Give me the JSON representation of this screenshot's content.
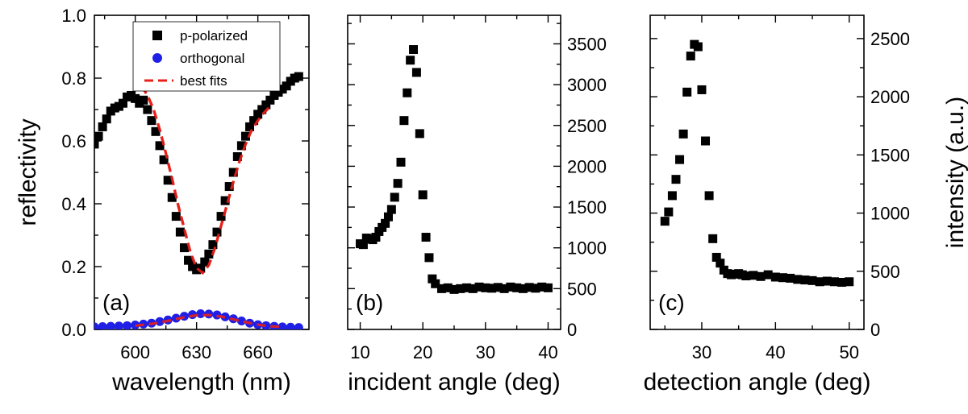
{
  "chart_data": [
    {
      "type": "scatter",
      "panel_label": "(a)",
      "xlabel": "wavelength (nm)",
      "ylabel": "reflectivity",
      "xlim": [
        580,
        685
      ],
      "ylim": [
        0,
        1.0
      ],
      "xticks": [
        600,
        630,
        660
      ],
      "yticks": [
        0.0,
        0.2,
        0.4,
        0.6,
        0.8,
        1.0
      ],
      "ytick_labels": [
        "0.0",
        "0.2",
        "0.4",
        "0.6",
        "0.8",
        "1.0"
      ],
      "legend": {
        "position": "top-center",
        "entries": [
          {
            "label": "p-polarized",
            "marker": "square",
            "color": "#000000"
          },
          {
            "label": "orthogonal",
            "marker": "circle",
            "color": "#1f1fe6"
          },
          {
            "label": "best fits",
            "marker": "dashed-line",
            "color": "#e8201a"
          }
        ]
      },
      "series": [
        {
          "name": "p-polarized",
          "marker": "square",
          "color": "#000000",
          "x": [
            580,
            582,
            584,
            586,
            588,
            590,
            592,
            594,
            596,
            598,
            600,
            602,
            604,
            606,
            608,
            610,
            612,
            614,
            616,
            618,
            620,
            622,
            624,
            626,
            628,
            630,
            632,
            634,
            636,
            638,
            640,
            642,
            644,
            646,
            648,
            650,
            652,
            654,
            656,
            658,
            660,
            662,
            664,
            666,
            668,
            670,
            672,
            674,
            676,
            678,
            680
          ],
          "y": [
            0.59,
            0.615,
            0.645,
            0.67,
            0.695,
            0.705,
            0.71,
            0.72,
            0.74,
            0.745,
            0.735,
            0.72,
            0.73,
            0.7,
            0.665,
            0.63,
            0.585,
            0.54,
            0.475,
            0.42,
            0.36,
            0.31,
            0.26,
            0.22,
            0.2,
            0.19,
            0.195,
            0.215,
            0.24,
            0.27,
            0.31,
            0.36,
            0.41,
            0.455,
            0.5,
            0.55,
            0.585,
            0.615,
            0.645,
            0.665,
            0.685,
            0.7,
            0.715,
            0.73,
            0.745,
            0.755,
            0.765,
            0.775,
            0.79,
            0.8,
            0.805
          ]
        },
        {
          "name": "orthogonal",
          "marker": "circle",
          "color": "#1f1fe6",
          "x": [
            580,
            584,
            588,
            592,
            596,
            600,
            604,
            608,
            612,
            616,
            620,
            624,
            628,
            632,
            636,
            640,
            644,
            648,
            652,
            656,
            660,
            664,
            668,
            672,
            676,
            680
          ],
          "y": [
            0.008,
            0.009,
            0.01,
            0.011,
            0.012,
            0.014,
            0.017,
            0.02,
            0.025,
            0.03,
            0.036,
            0.042,
            0.047,
            0.05,
            0.049,
            0.046,
            0.04,
            0.034,
            0.027,
            0.02,
            0.015,
            0.012,
            0.01,
            0.008,
            0.007,
            0.006
          ]
        },
        {
          "name": "best fits",
          "marker": "dashed-line",
          "color": "#e8201a",
          "x": [
            603,
            606,
            609,
            612,
            615,
            618,
            621,
            624,
            627,
            630,
            633,
            636,
            639,
            642,
            645,
            648,
            651,
            654,
            657,
            660,
            663,
            666
          ],
          "y": [
            0.775,
            0.745,
            0.7,
            0.635,
            0.56,
            0.48,
            0.395,
            0.32,
            0.245,
            0.195,
            0.18,
            0.205,
            0.26,
            0.33,
            0.4,
            0.47,
            0.535,
            0.59,
            0.635,
            0.665,
            0.69,
            0.71
          ]
        },
        {
          "name": "best fits (orthogonal)",
          "marker": "dashed-line",
          "color": "#e8201a",
          "x": [
            600,
            606,
            612,
            618,
            624,
            630,
            636,
            642,
            648,
            654,
            660,
            666,
            672
          ],
          "y": [
            0.012,
            0.016,
            0.022,
            0.03,
            0.039,
            0.045,
            0.046,
            0.041,
            0.032,
            0.023,
            0.015,
            0.01,
            0.008
          ]
        }
      ]
    },
    {
      "type": "scatter",
      "panel_label": "(b)",
      "xlabel": "incident angle (deg)",
      "ylabel": "",
      "xlim": [
        8,
        42
      ],
      "ylim": [
        0,
        3850
      ],
      "xticks": [
        10,
        20,
        30,
        40
      ],
      "yticks": [
        0,
        500,
        1000,
        1500,
        2000,
        2500,
        3000,
        3500
      ],
      "ytick_labels": [
        "0",
        "500",
        "1000",
        "1500",
        "2000",
        "2500",
        "3000",
        "3500"
      ],
      "yaxis_side": "right",
      "series": [
        {
          "name": "intensity",
          "marker": "square",
          "color": "#000000",
          "x": [
            10,
            10.5,
            11,
            11.5,
            12,
            12.5,
            13,
            13.5,
            14,
            14.5,
            15,
            15.5,
            16,
            16.5,
            17,
            17.5,
            18,
            18.5,
            19,
            19.5,
            20,
            20.5,
            21,
            21.5,
            22,
            23,
            24,
            25,
            26,
            27,
            28,
            29,
            30,
            31,
            32,
            33,
            34,
            35,
            36,
            37,
            38,
            39,
            40
          ],
          "y": [
            1050,
            1040,
            1120,
            1110,
            1100,
            1130,
            1200,
            1250,
            1300,
            1380,
            1470,
            1620,
            1790,
            2050,
            2560,
            2900,
            3300,
            3430,
            3150,
            2400,
            1650,
            1130,
            880,
            620,
            560,
            500,
            510,
            490,
            500,
            510,
            500,
            520,
            510,
            505,
            515,
            500,
            520,
            510,
            500,
            515,
            505,
            520,
            510
          ]
        }
      ]
    },
    {
      "type": "scatter",
      "panel_label": "(c)",
      "xlabel": "detection angle (deg)",
      "ylabel": "intensity (a.u.)",
      "xlim": [
        23,
        52
      ],
      "ylim": [
        0,
        2700
      ],
      "xticks": [
        30,
        40,
        50
      ],
      "yticks": [
        0,
        500,
        1000,
        1500,
        2000,
        2500
      ],
      "ytick_labels": [
        "0",
        "500",
        "1000",
        "1500",
        "2000",
        "2500"
      ],
      "yaxis_side": "right",
      "series": [
        {
          "name": "intensity",
          "marker": "square",
          "color": "#000000",
          "x": [
            25,
            25.5,
            26,
            26.5,
            27,
            27.5,
            28,
            28.5,
            29,
            29.5,
            30,
            30.5,
            31,
            31.5,
            32,
            32.5,
            33,
            33.5,
            34,
            34.5,
            35,
            35.5,
            36,
            37,
            38,
            39,
            40,
            41,
            42,
            43,
            44,
            45,
            46,
            47,
            48,
            49,
            50
          ],
          "y": [
            930,
            1010,
            1150,
            1290,
            1460,
            1680,
            2040,
            2350,
            2450,
            2430,
            2060,
            1620,
            1150,
            780,
            620,
            570,
            510,
            480,
            470,
            475,
            480,
            470,
            460,
            465,
            455,
            470,
            450,
            445,
            440,
            430,
            425,
            420,
            410,
            415,
            410,
            405,
            410
          ]
        }
      ]
    }
  ]
}
